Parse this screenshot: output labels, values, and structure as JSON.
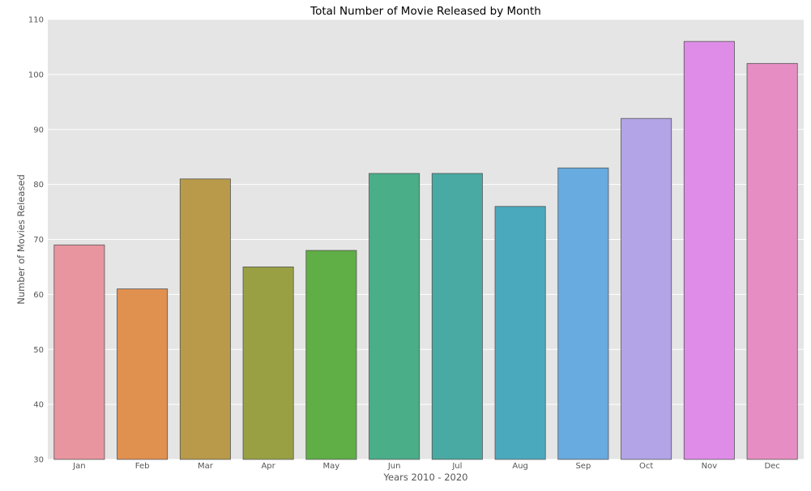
{
  "chart_data": {
    "type": "bar",
    "title": "Total Number of Movie Released by Month",
    "xlabel": "Years 2010 - 2020",
    "ylabel": "Number of Movies Released",
    "categories": [
      "Jan",
      "Feb",
      "Mar",
      "Apr",
      "May",
      "Jun",
      "Jul",
      "Aug",
      "Sep",
      "Oct",
      "Nov",
      "Dec"
    ],
    "values": [
      69,
      61,
      81,
      65,
      68,
      82,
      82,
      76,
      83,
      92,
      106,
      102
    ],
    "colors": [
      "#e8959f",
      "#e0904f",
      "#b89a4a",
      "#98a043",
      "#5fae46",
      "#4aae88",
      "#48aaa2",
      "#4ba9bd",
      "#67abe0",
      "#b3a4e8",
      "#df8ce8",
      "#e68ec4"
    ],
    "ylim": [
      30,
      110
    ],
    "yticks": [
      30,
      40,
      50,
      60,
      70,
      80,
      90,
      100,
      110
    ],
    "grid": true,
    "style": {
      "plot_background": "#e5e5e5",
      "grid_color": "#ffffff",
      "bar_edge_color": "#555555",
      "text_color": "#555555",
      "title_color": "#000000"
    }
  }
}
